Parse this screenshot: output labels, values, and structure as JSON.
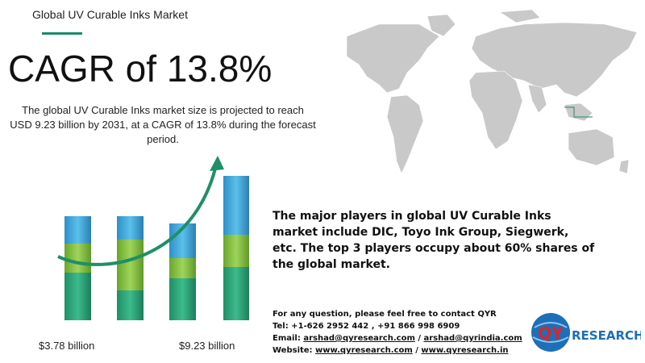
{
  "header": {
    "title": "Global UV Curable Inks Market",
    "headline": "CAGR of 13.8%",
    "description": "The global UV Curable Inks market size is projected to reach USD 9.23 billion by 2031, at a CAGR of 13.8% during the forecast period."
  },
  "growth": {
    "start_label": "$3.78  billion",
    "end_label": "$9.23  billion"
  },
  "players": {
    "text": "The major players in global UV Curable Inks market include DIC, Toyo Ink Group, Siegwerk, etc. The top 3 players occupy about 60% shares of the global market."
  },
  "contact": {
    "intro": "For any question, please feel free to contact QYR",
    "tel": "Tel: +1-626 2952 442 , +91 866 998 6909",
    "email": {
      "label": "Email:",
      "links": [
        "arshad@qyresearch.com",
        "arshad@qyrindia.com"
      ],
      "separator": "/"
    },
    "website": {
      "label": "Website:",
      "links": [
        "www.qyresearch.com",
        "www.qyresearch.in"
      ],
      "separator": "/"
    }
  },
  "logo": {
    "mark": "QY",
    "text": "RESEARCH"
  }
}
